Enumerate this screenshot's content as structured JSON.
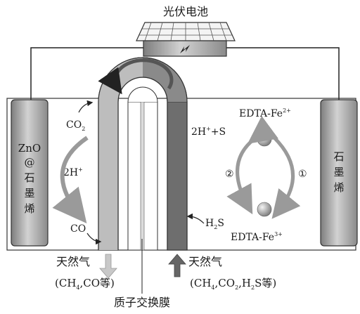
{
  "solar_panel": {
    "label": "光伏电池"
  },
  "left_electrode": {
    "line1": "ZnO",
    "line2": "@",
    "line3": "石",
    "line4": "墨",
    "line5": "烯"
  },
  "right_electrode": {
    "line1": "石",
    "line2": "墨",
    "line3": "烯"
  },
  "left_chamber": {
    "co2": "CO",
    "co2_sub": "2",
    "h_plus": "2H",
    "h_plus_sup": "+",
    "co": "CO"
  },
  "right_chamber": {
    "product": "2H",
    "product_sup": "+",
    "product_tail": "+S",
    "edta2": "EDTA-Fe",
    "edta2_sup": "2+",
    "edta3": "EDTA-Fe",
    "edta3_sup": "3+",
    "h2s": "H",
    "h2s_sub": "2",
    "h2s_tail": "S",
    "step1": "①",
    "step2": "②"
  },
  "inlet_left": {
    "label": "天然气",
    "formula_parts": [
      "(CH",
      "4",
      ",CO等)"
    ]
  },
  "inlet_right": {
    "label": "天然气",
    "formula_parts": [
      "(CH",
      "4",
      ",CO",
      "2",
      ",H",
      "2",
      "S等)"
    ]
  },
  "membrane": {
    "label": "质子交换膜"
  },
  "colors": {
    "electrode": "#a9a9a9",
    "membrane_dark": "#6e6e6e",
    "membrane_light": "#cfcfcf",
    "sphere": "#9a9a9a",
    "line": "#222222"
  }
}
